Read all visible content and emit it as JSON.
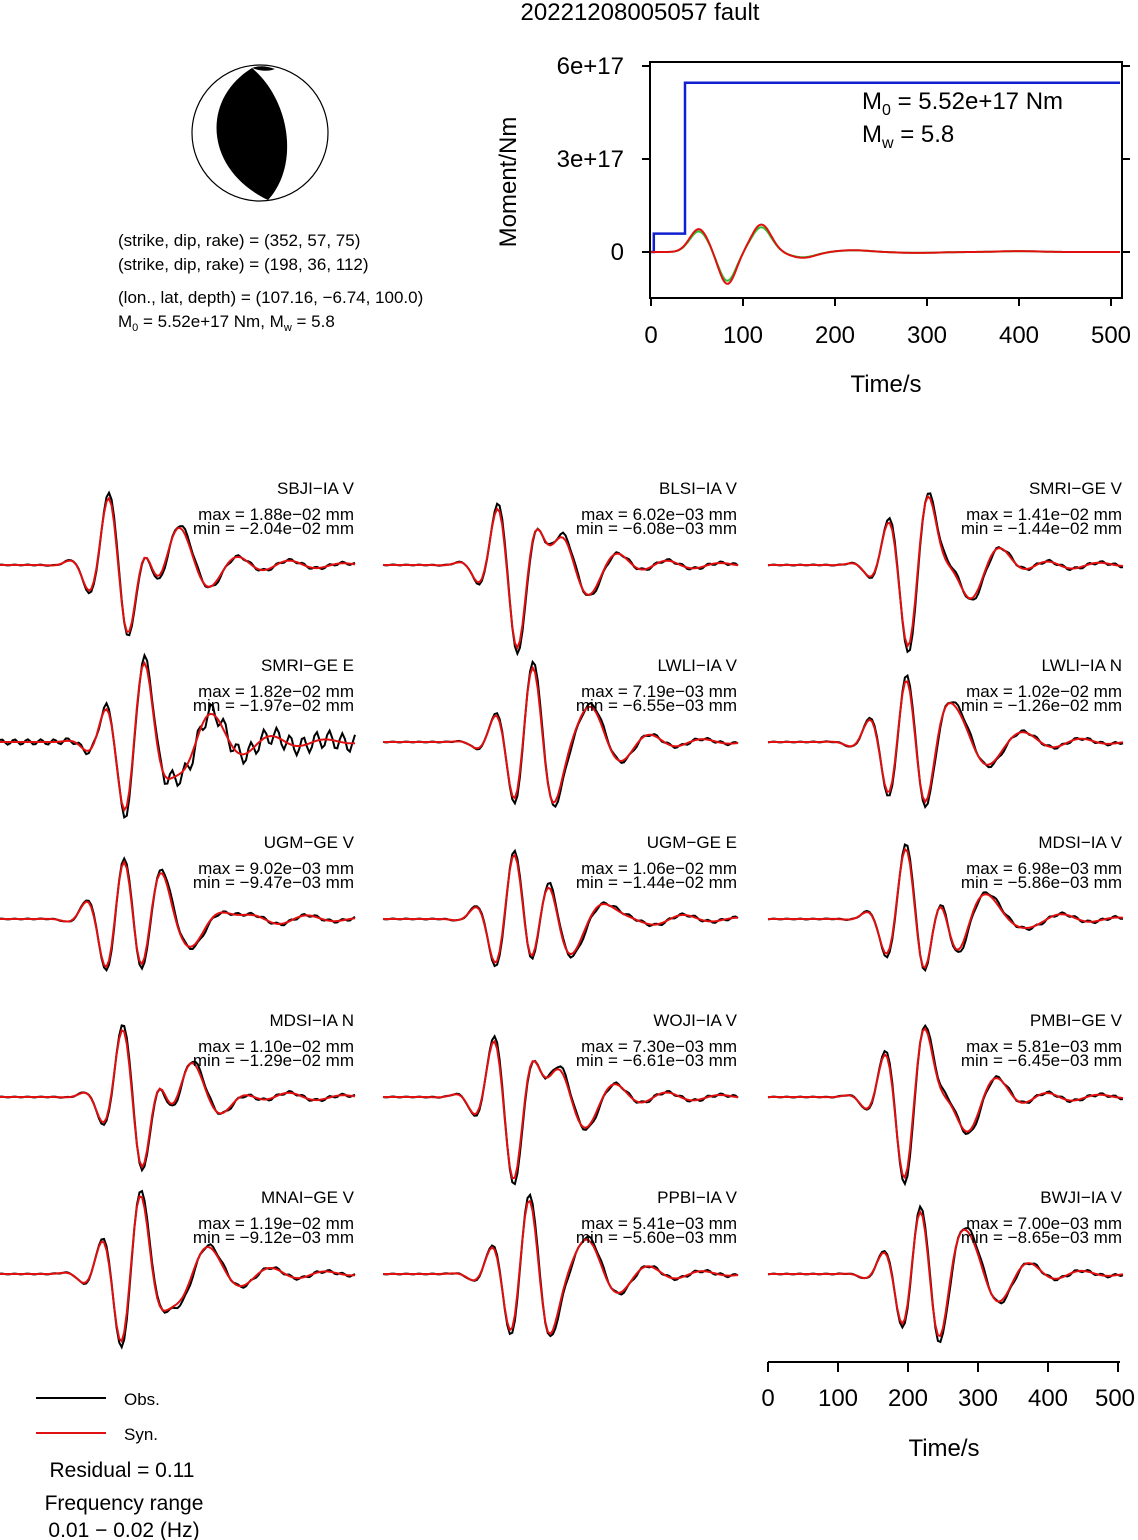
{
  "title": "20221208005057 fault",
  "mechanism": {
    "plane1": "(strike, dip, rake) = (352, 57, 75)",
    "plane2": "(strike, dip, rake) = (198, 36, 112)",
    "location": "(lon., lat, depth) = (107.16, −6.74, 100.0)",
    "moment_line_prefix": "M",
    "moment_line_sub": "0",
    "moment_line_rest": " = 5.52e+17 Nm, M",
    "moment_line_sub2": "w",
    "moment_line_end": " = 5.8"
  },
  "moment_chart": {
    "ylabel": "Moment/Nm",
    "xlabel": "Time/s",
    "yticks": [
      "6e+17",
      "3e+17",
      "0"
    ],
    "xticks": [
      "0",
      "100",
      "200",
      "300",
      "400",
      "500"
    ],
    "m0_prefix": "M",
    "m0_sub": "0",
    "m0_rest": " = 5.52e+17 Nm",
    "mw_prefix": "M",
    "mw_sub": "w",
    "mw_rest": " = 5.8"
  },
  "waveform_axis": {
    "xlabel": "Time/s",
    "xticks": [
      "0",
      "100",
      "200",
      "300",
      "400",
      "500"
    ]
  },
  "legend": {
    "obs_label": "Obs.",
    "syn_label": "Syn.",
    "residual": "Residual = 0.11",
    "freq_title": "Frequency range",
    "freq_value": "0.01 − 0.02 (Hz)"
  },
  "colors": {
    "obs": "#000000",
    "syn": "#e01010",
    "moment_cumulative": "#1020d0",
    "moment_rate_green": "#30c030",
    "moment_rate_red": "#e01010"
  },
  "stations": [
    {
      "name": "SBJI−IA V",
      "max": "max = 1.88e−02 mm",
      "min": "min = −2.04e−02 mm"
    },
    {
      "name": "BLSI−IA V",
      "max": "max = 6.02e−03 mm",
      "min": "min = −6.08e−03 mm"
    },
    {
      "name": "SMRI−GE V",
      "max": "max = 1.41e−02 mm",
      "min": "min = −1.44e−02 mm"
    },
    {
      "name": "SMRI−GE E",
      "max": "max = 1.82e−02 mm",
      "min": "min = −1.97e−02 mm"
    },
    {
      "name": "LWLI−IA V",
      "max": "max = 7.19e−03 mm",
      "min": "min = −6.55e−03 mm"
    },
    {
      "name": "LWLI−IA N",
      "max": "max = 1.02e−02 mm",
      "min": "min = −1.26e−02 mm"
    },
    {
      "name": "UGM−GE V",
      "max": "max = 9.02e−03 mm",
      "min": "min = −9.47e−03 mm"
    },
    {
      "name": "UGM−GE E",
      "max": "max = 1.06e−02 mm",
      "min": "min = −1.44e−02 mm"
    },
    {
      "name": "MDSI−IA V",
      "max": "max = 6.98e−03 mm",
      "min": "min = −5.86e−03 mm"
    },
    {
      "name": "MDSI−IA N",
      "max": "max = 1.10e−02 mm",
      "min": "min = −1.29e−02 mm"
    },
    {
      "name": "WOJI−IA V",
      "max": "max = 7.30e−03 mm",
      "min": "min = −6.61e−03 mm"
    },
    {
      "name": "PMBI−GE V",
      "max": "max = 5.81e−03 mm",
      "min": "min = −6.45e−03 mm"
    },
    {
      "name": "MNAI−GE V",
      "max": "max = 1.19e−02 mm",
      "min": "min = −9.12e−03 mm"
    },
    {
      "name": "PPBI−IA V",
      "max": "max = 5.41e−03 mm",
      "min": "min = −5.60e−03 mm"
    },
    {
      "name": "BWJI−IA V",
      "max": "max = 7.00e−03 mm",
      "min": "min = −8.65e−03 mm"
    }
  ],
  "chart_data": [
    {
      "type": "line",
      "ylabel": "Moment/Nm",
      "xlabel": "Time/s",
      "xlim": [
        0,
        510
      ],
      "ylim": [
        -1.5e+17,
        6.2e+17
      ],
      "series": [
        {
          "x": [
            0,
            3,
            3,
            30,
            30,
            37,
            37,
            510
          ],
          "y": [
            0,
            0,
            6e+16,
            6e+16,
            6e+16,
            6e+16,
            5.52e+17,
            5.52e+17
          ]
        }
      ]
    }
  ]
}
